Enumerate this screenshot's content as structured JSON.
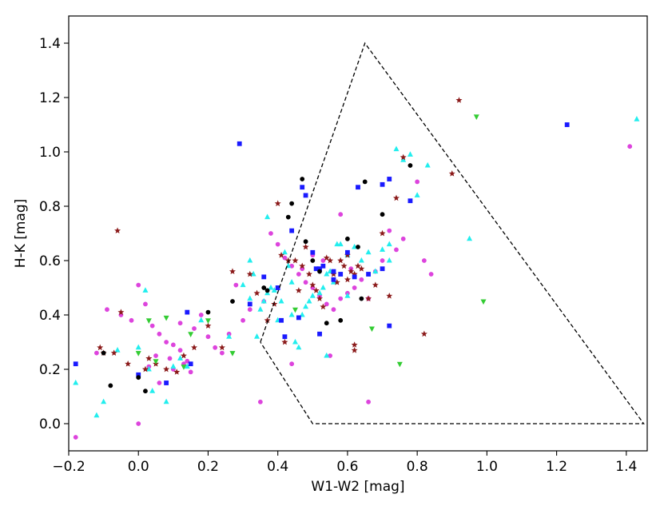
{
  "chart_data": {
    "type": "scatter",
    "title": "",
    "xlabel": "W1-W2 [mag]",
    "ylabel": "H-K [mag]",
    "xlim": [
      -0.2,
      1.46
    ],
    "ylim": [
      -0.1,
      1.5
    ],
    "xticks": [
      "−0.2",
      "0.0",
      "0.2",
      "0.4",
      "0.6",
      "0.8",
      "1.0",
      "1.2",
      "1.4"
    ],
    "yticks": [
      "0.0",
      "0.2",
      "0.4",
      "0.6",
      "0.8",
      "1.0",
      "1.2",
      "1.4"
    ],
    "grid": false,
    "legend": "none",
    "series": [
      {
        "marker": "circle",
        "color": "#dd44dd",
        "points": [
          [
            -0.18,
            -0.05
          ],
          [
            0.0,
            0.0
          ],
          [
            -0.12,
            0.26
          ],
          [
            -0.09,
            0.42
          ],
          [
            -0.05,
            0.4
          ],
          [
            -0.02,
            0.38
          ],
          [
            0.0,
            0.51
          ],
          [
            0.02,
            0.44
          ],
          [
            0.04,
            0.36
          ],
          [
            0.06,
            0.33
          ],
          [
            0.08,
            0.3
          ],
          [
            0.1,
            0.29
          ],
          [
            0.12,
            0.27
          ],
          [
            0.14,
            0.23
          ],
          [
            0.16,
            0.35
          ],
          [
            0.18,
            0.4
          ],
          [
            0.2,
            0.32
          ],
          [
            0.22,
            0.28
          ],
          [
            0.24,
            0.26
          ],
          [
            0.26,
            0.33
          ],
          [
            0.28,
            0.51
          ],
          [
            0.3,
            0.38
          ],
          [
            0.32,
            0.42
          ],
          [
            0.35,
            0.08
          ],
          [
            0.36,
            0.45
          ],
          [
            0.38,
            0.7
          ],
          [
            0.4,
            0.66
          ],
          [
            0.42,
            0.61
          ],
          [
            0.44,
            0.58
          ],
          [
            0.46,
            0.55
          ],
          [
            0.48,
            0.52
          ],
          [
            0.5,
            0.5
          ],
          [
            0.52,
            0.47
          ],
          [
            0.54,
            0.44
          ],
          [
            0.56,
            0.42
          ],
          [
            0.58,
            0.46
          ],
          [
            0.6,
            0.48
          ],
          [
            0.62,
            0.5
          ],
          [
            0.64,
            0.53
          ],
          [
            0.66,
            0.08
          ],
          [
            0.68,
            0.56
          ],
          [
            0.7,
            0.6
          ],
          [
            0.72,
            0.71
          ],
          [
            0.74,
            0.64
          ],
          [
            0.76,
            0.68
          ],
          [
            0.8,
            0.89
          ],
          [
            0.82,
            0.6
          ],
          [
            0.84,
            0.55
          ],
          [
            1.41,
            1.02
          ],
          [
            0.06,
            0.15
          ],
          [
            0.1,
            0.2
          ],
          [
            0.15,
            0.19
          ],
          [
            0.03,
            0.21
          ],
          [
            0.12,
            0.37
          ],
          [
            0.44,
            0.22
          ],
          [
            0.55,
            0.25
          ],
          [
            0.58,
            0.77
          ],
          [
            0.61,
            0.57
          ],
          [
            0.66,
            0.46
          ],
          [
            0.5,
            0.62
          ],
          [
            0.53,
            0.6
          ],
          [
            0.47,
            0.57
          ],
          [
            0.05,
            0.25
          ],
          [
            0.09,
            0.24
          ],
          [
            0.13,
            0.22
          ]
        ]
      },
      {
        "marker": "triangle",
        "color": "#22eeee",
        "points": [
          [
            -0.18,
            0.15
          ],
          [
            -0.12,
            0.03
          ],
          [
            -0.1,
            0.08
          ],
          [
            -0.06,
            0.27
          ],
          [
            0.0,
            0.28
          ],
          [
            0.02,
            0.49
          ],
          [
            0.03,
            0.2
          ],
          [
            0.04,
            0.12
          ],
          [
            0.08,
            0.08
          ],
          [
            0.1,
            0.21
          ],
          [
            0.12,
            0.24
          ],
          [
            0.14,
            0.21
          ],
          [
            0.18,
            0.38
          ],
          [
            0.26,
            0.32
          ],
          [
            0.3,
            0.51
          ],
          [
            0.32,
            0.6
          ],
          [
            0.33,
            0.55
          ],
          [
            0.34,
            0.32
          ],
          [
            0.35,
            0.42
          ],
          [
            0.36,
            0.45
          ],
          [
            0.37,
            0.48
          ],
          [
            0.38,
            0.5
          ],
          [
            0.39,
            0.49
          ],
          [
            0.4,
            0.38
          ],
          [
            0.41,
            0.45
          ],
          [
            0.42,
            0.63
          ],
          [
            0.43,
            0.58
          ],
          [
            0.44,
            0.4
          ],
          [
            0.45,
            0.3
          ],
          [
            0.46,
            0.28
          ],
          [
            0.47,
            0.4
          ],
          [
            0.48,
            0.43
          ],
          [
            0.49,
            0.45
          ],
          [
            0.5,
            0.47
          ],
          [
            0.52,
            0.48
          ],
          [
            0.53,
            0.5
          ],
          [
            0.54,
            0.55
          ],
          [
            0.55,
            0.56
          ],
          [
            0.56,
            0.52
          ],
          [
            0.57,
            0.66
          ],
          [
            0.58,
            0.66
          ],
          [
            0.6,
            0.62
          ],
          [
            0.62,
            0.65
          ],
          [
            0.64,
            0.6
          ],
          [
            0.66,
            0.63
          ],
          [
            0.7,
            0.64
          ],
          [
            0.72,
            0.66
          ],
          [
            0.74,
            1.01
          ],
          [
            0.76,
            0.97
          ],
          [
            0.78,
            0.99
          ],
          [
            0.8,
            0.84
          ],
          [
            0.83,
            0.95
          ],
          [
            0.95,
            0.68
          ],
          [
            0.72,
            0.6
          ],
          [
            0.68,
            0.56
          ],
          [
            0.54,
            0.25
          ],
          [
            0.6,
            0.47
          ],
          [
            0.37,
            0.76
          ],
          [
            0.44,
            0.52
          ],
          [
            0.32,
            0.46
          ],
          [
            1.43,
            1.12
          ]
        ]
      },
      {
        "marker": "star",
        "color": "#8b1a1a",
        "points": [
          [
            -0.06,
            0.71
          ],
          [
            -0.05,
            0.41
          ],
          [
            -0.11,
            0.28
          ],
          [
            -0.1,
            0.26
          ],
          [
            -0.07,
            0.26
          ],
          [
            -0.03,
            0.22
          ],
          [
            0.02,
            0.2
          ],
          [
            0.03,
            0.24
          ],
          [
            0.05,
            0.22
          ],
          [
            0.08,
            0.2
          ],
          [
            0.11,
            0.19
          ],
          [
            0.13,
            0.25
          ],
          [
            0.16,
            0.28
          ],
          [
            0.2,
            0.36
          ],
          [
            0.24,
            0.28
          ],
          [
            0.27,
            0.56
          ],
          [
            0.32,
            0.55
          ],
          [
            0.34,
            0.48
          ],
          [
            0.37,
            0.38
          ],
          [
            0.39,
            0.44
          ],
          [
            0.4,
            0.81
          ],
          [
            0.41,
            0.62
          ],
          [
            0.43,
            0.6
          ],
          [
            0.45,
            0.6
          ],
          [
            0.47,
            0.58
          ],
          [
            0.49,
            0.55
          ],
          [
            0.5,
            0.51
          ],
          [
            0.51,
            0.49
          ],
          [
            0.52,
            0.46
          ],
          [
            0.53,
            0.43
          ],
          [
            0.54,
            0.61
          ],
          [
            0.55,
            0.6
          ],
          [
            0.56,
            0.55
          ],
          [
            0.57,
            0.52
          ],
          [
            0.58,
            0.6
          ],
          [
            0.59,
            0.58
          ],
          [
            0.6,
            0.62
          ],
          [
            0.61,
            0.56
          ],
          [
            0.62,
            0.55
          ],
          [
            0.63,
            0.58
          ],
          [
            0.64,
            0.57
          ],
          [
            0.66,
            0.46
          ],
          [
            0.68,
            0.51
          ],
          [
            0.7,
            0.7
          ],
          [
            0.72,
            0.47
          ],
          [
            0.74,
            0.83
          ],
          [
            0.76,
            0.98
          ],
          [
            0.82,
            0.33
          ],
          [
            0.9,
            0.92
          ],
          [
            0.92,
            1.19
          ],
          [
            0.6,
            0.53
          ],
          [
            0.42,
            0.3
          ],
          [
            0.48,
            0.65
          ],
          [
            0.62,
            0.27
          ],
          [
            0.62,
            0.29
          ],
          [
            0.46,
            0.49
          ]
        ]
      },
      {
        "marker": "square",
        "color": "#1a1aff",
        "points": [
          [
            -0.18,
            0.22
          ],
          [
            0.0,
            0.18
          ],
          [
            0.08,
            0.15
          ],
          [
            0.14,
            0.41
          ],
          [
            0.15,
            0.22
          ],
          [
            0.29,
            1.03
          ],
          [
            0.32,
            0.44
          ],
          [
            0.36,
            0.54
          ],
          [
            0.4,
            0.5
          ],
          [
            0.41,
            0.38
          ],
          [
            0.42,
            0.32
          ],
          [
            0.44,
            0.71
          ],
          [
            0.47,
            0.87
          ],
          [
            0.48,
            0.84
          ],
          [
            0.5,
            0.63
          ],
          [
            0.51,
            0.57
          ],
          [
            0.52,
            0.57
          ],
          [
            0.53,
            0.58
          ],
          [
            0.56,
            0.53
          ],
          [
            0.58,
            0.55
          ],
          [
            0.6,
            0.63
          ],
          [
            0.62,
            0.54
          ],
          [
            0.63,
            0.87
          ],
          [
            0.66,
            0.55
          ],
          [
            0.7,
            0.88
          ],
          [
            0.72,
            0.9
          ],
          [
            0.7,
            0.57
          ],
          [
            0.72,
            0.36
          ],
          [
            0.78,
            0.82
          ],
          [
            1.23,
            1.1
          ],
          [
            0.46,
            0.39
          ],
          [
            0.56,
            0.56
          ],
          [
            0.52,
            0.33
          ]
        ]
      },
      {
        "marker": "circle",
        "color": "#000000",
        "points": [
          [
            -0.1,
            0.26
          ],
          [
            -0.08,
            0.14
          ],
          [
            0.0,
            0.17
          ],
          [
            0.02,
            0.12
          ],
          [
            0.2,
            0.41
          ],
          [
            0.27,
            0.45
          ],
          [
            0.36,
            0.5
          ],
          [
            0.37,
            0.49
          ],
          [
            0.43,
            0.76
          ],
          [
            0.44,
            0.81
          ],
          [
            0.47,
            0.9
          ],
          [
            0.48,
            0.67
          ],
          [
            0.5,
            0.6
          ],
          [
            0.52,
            0.56
          ],
          [
            0.54,
            0.37
          ],
          [
            0.58,
            0.38
          ],
          [
            0.6,
            0.68
          ],
          [
            0.63,
            0.65
          ],
          [
            0.64,
            0.46
          ],
          [
            0.65,
            0.89
          ],
          [
            0.7,
            0.77
          ],
          [
            0.78,
            0.95
          ]
        ]
      },
      {
        "marker": "triangle-down",
        "color": "#33cc33",
        "points": [
          [
            0.0,
            0.26
          ],
          [
            0.03,
            0.38
          ],
          [
            0.05,
            0.23
          ],
          [
            0.08,
            0.39
          ],
          [
            0.13,
            0.21
          ],
          [
            0.15,
            0.33
          ],
          [
            0.2,
            0.38
          ],
          [
            0.27,
            0.26
          ],
          [
            0.45,
            0.42
          ],
          [
            0.67,
            0.35
          ],
          [
            0.75,
            0.22
          ],
          [
            0.97,
            1.13
          ],
          [
            0.99,
            0.45
          ]
        ]
      }
    ],
    "annotations": [
      {
        "type": "dashed-polygon",
        "color": "#000000",
        "vertices": [
          [
            0.35,
            0.3
          ],
          [
            0.65,
            1.4
          ],
          [
            1.45,
            0.0
          ],
          [
            0.5,
            0.0
          ],
          [
            0.35,
            0.3
          ]
        ]
      }
    ]
  }
}
